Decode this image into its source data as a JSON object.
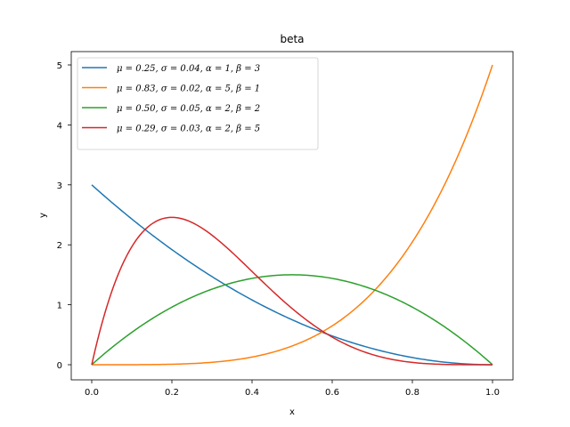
{
  "chart_data": {
    "type": "line",
    "title": "beta",
    "xlabel": "x",
    "ylabel": "y",
    "xlim": [
      -0.05,
      1.05
    ],
    "ylim": [
      -0.25,
      5.25
    ],
    "xticks": [
      "0.0",
      "0.2",
      "0.4",
      "0.6",
      "0.8",
      "1.0"
    ],
    "yticks": [
      "0",
      "1",
      "2",
      "3",
      "4",
      "5"
    ],
    "grid": false,
    "legend_position": "upper left",
    "series": [
      {
        "name": "μ = 0.25, σ = 0.04, α = 1, β = 3",
        "color": "#1f77b4",
        "alpha": 1,
        "beta": 3
      },
      {
        "name": "μ = 0.83, σ = 0.02, α = 5, β = 1",
        "color": "#ff7f0e",
        "alpha": 5,
        "beta": 1
      },
      {
        "name": "μ = 0.50, σ = 0.05, α = 2, β = 2",
        "color": "#2ca02c",
        "alpha": 2,
        "beta": 2
      },
      {
        "name": "μ = 0.29, σ = 0.03, α = 2, β = 5",
        "color": "#d62728",
        "alpha": 2,
        "beta": 5
      }
    ]
  }
}
